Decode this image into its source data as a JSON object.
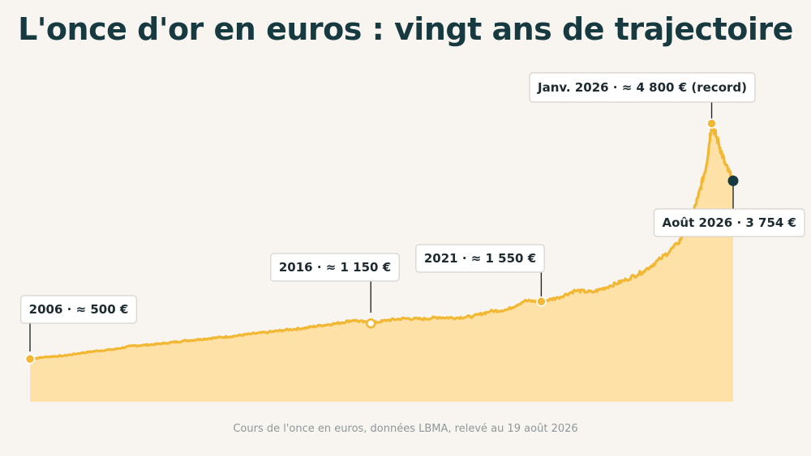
{
  "colors": {
    "background": "#f8f5f0",
    "title": "#163a40",
    "line": "#f2b733",
    "area": "#fde1a6",
    "current_marker": "#163a40",
    "source_text": "#8e979b"
  },
  "chart_data": {
    "type": "area",
    "title": "L'once d'or en euros : vingt ans de trajectoire",
    "source": "Cours de l'once en euros, données LBMA, relevé au 19 août 2026",
    "unit": "€",
    "xlim": [
      2006.0,
      2026.63
    ],
    "ylim": [
      -280,
      6020
    ],
    "grid": false,
    "legend": "none",
    "series": [
      {
        "points": [
          [
            2006.0,
            500
          ],
          [
            2006.5,
            540
          ],
          [
            2007.0,
            560
          ],
          [
            2007.5,
            610
          ],
          [
            2008.0,
            650
          ],
          [
            2008.5,
            680
          ],
          [
            2009.0,
            740
          ],
          [
            2009.5,
            760
          ],
          [
            2010.0,
            790
          ],
          [
            2010.5,
            830
          ],
          [
            2011.0,
            860
          ],
          [
            2011.5,
            890
          ],
          [
            2012.0,
            920
          ],
          [
            2012.5,
            960
          ],
          [
            2013.0,
            990
          ],
          [
            2013.5,
            1030
          ],
          [
            2014.0,
            1060
          ],
          [
            2014.5,
            1110
          ],
          [
            2015.0,
            1150
          ],
          [
            2015.5,
            1210
          ],
          [
            2016.0,
            1150
          ],
          [
            2016.5,
            1210
          ],
          [
            2017.0,
            1240
          ],
          [
            2017.5,
            1230
          ],
          [
            2018.0,
            1260
          ],
          [
            2018.5,
            1250
          ],
          [
            2019.0,
            1280
          ],
          [
            2019.5,
            1370
          ],
          [
            2020.0,
            1400
          ],
          [
            2020.5,
            1560
          ],
          [
            2021.0,
            1550
          ],
          [
            2021.5,
            1620
          ],
          [
            2022.0,
            1750
          ],
          [
            2022.5,
            1720
          ],
          [
            2023.0,
            1830
          ],
          [
            2023.5,
            1950
          ],
          [
            2024.0,
            2100
          ],
          [
            2024.5,
            2330
          ],
          [
            2025.0,
            2600
          ],
          [
            2025.33,
            2950
          ],
          [
            2025.6,
            3450
          ],
          [
            2025.85,
            4050
          ],
          [
            2026.0,
            4800
          ],
          [
            2026.2,
            4450
          ],
          [
            2026.4,
            4050
          ],
          [
            2026.63,
            3754
          ]
        ]
      }
    ],
    "annotations": [
      {
        "x": 2006.0,
        "y": 500,
        "text": "2006 · ≈ 500 €",
        "marker": "filled"
      },
      {
        "x": 2016.0,
        "y": 1150,
        "text": "2016 · ≈ 1 150 €",
        "marker": "hollow"
      },
      {
        "x": 2021.0,
        "y": 1550,
        "text": "2021 · ≈ 1 550 €",
        "marker": "filled"
      },
      {
        "x": 2026.0,
        "y": 4800,
        "text": "Janv. 2026 · ≈ 4 800 € (record)",
        "marker": "filled"
      },
      {
        "x": 2026.63,
        "y": 3754,
        "text": "Août 2026 · 3 754 €",
        "marker": "current"
      }
    ]
  }
}
